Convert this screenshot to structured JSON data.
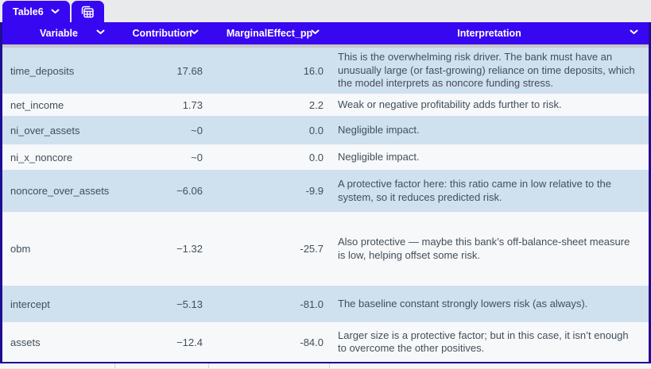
{
  "tab_bar": {
    "active_tab_label": "Table6",
    "tabs": [
      {
        "label": "Table6",
        "icon": "chevron-down-icon"
      },
      {
        "label": "",
        "icon": "tables-icon"
      }
    ]
  },
  "icons": {
    "tab_chevron": "chevron-down-icon",
    "header_chevron": "chevron-down-icon",
    "second_tab": "tables-icon"
  },
  "colors": {
    "accent_blue": "#3807f2",
    "border_navy": "#1d0f93",
    "row_alt_blue": "#cfe0ef",
    "row_white": "#f7f8fa",
    "header_text": "#ffffff",
    "cell_text": "#424f59",
    "divider_gray": "#c6c7ca"
  },
  "table": {
    "columns": [
      {
        "label": "Variable",
        "align": "left"
      },
      {
        "label": "Contribution",
        "align": "right"
      },
      {
        "label": "MarginalEffect_pp",
        "align": "right"
      },
      {
        "label": "Interpretation",
        "align": "left"
      }
    ],
    "rows": [
      {
        "variable": "time_deposits",
        "contribution": "17.68",
        "marginal_effect_pp": "16.0",
        "interpretation": "This is the overwhelming risk driver. The bank must have an unusually large (or fast-growing) reliance on time deposits, which the model interprets as noncore funding stress."
      },
      {
        "variable": "net_income",
        "contribution": "1.73",
        "marginal_effect_pp": "2.2",
        "interpretation": "Weak or negative profitability adds further to risk."
      },
      {
        "variable": "ni_over_assets",
        "contribution": "~0",
        "marginal_effect_pp": "0.0",
        "interpretation": "Negligible impact."
      },
      {
        "variable": "ni_x_noncore",
        "contribution": "~0",
        "marginal_effect_pp": "0.0",
        "interpretation": "Negligible impact."
      },
      {
        "variable": "noncore_over_assets",
        "contribution": "−6.06",
        "marginal_effect_pp": "-9.9",
        "interpretation": "A protective factor here: this ratio came in low relative to the system, so it reduces predicted risk."
      },
      {
        "variable": "obm",
        "contribution": "−1.32",
        "marginal_effect_pp": "-25.7",
        "interpretation": "Also protective — maybe this bank’s off-balance-sheet measure is low, helping offset some risk."
      },
      {
        "variable": "intercept",
        "contribution": "−5.13",
        "marginal_effect_pp": "-81.0",
        "interpretation": "The baseline constant strongly lowers risk (as always)."
      },
      {
        "variable": "assets",
        "contribution": "−12.4",
        "marginal_effect_pp": "-84.0",
        "interpretation": "Larger size is a protective factor; but in this case, it isn’t enough to overcome the other positives."
      }
    ]
  }
}
